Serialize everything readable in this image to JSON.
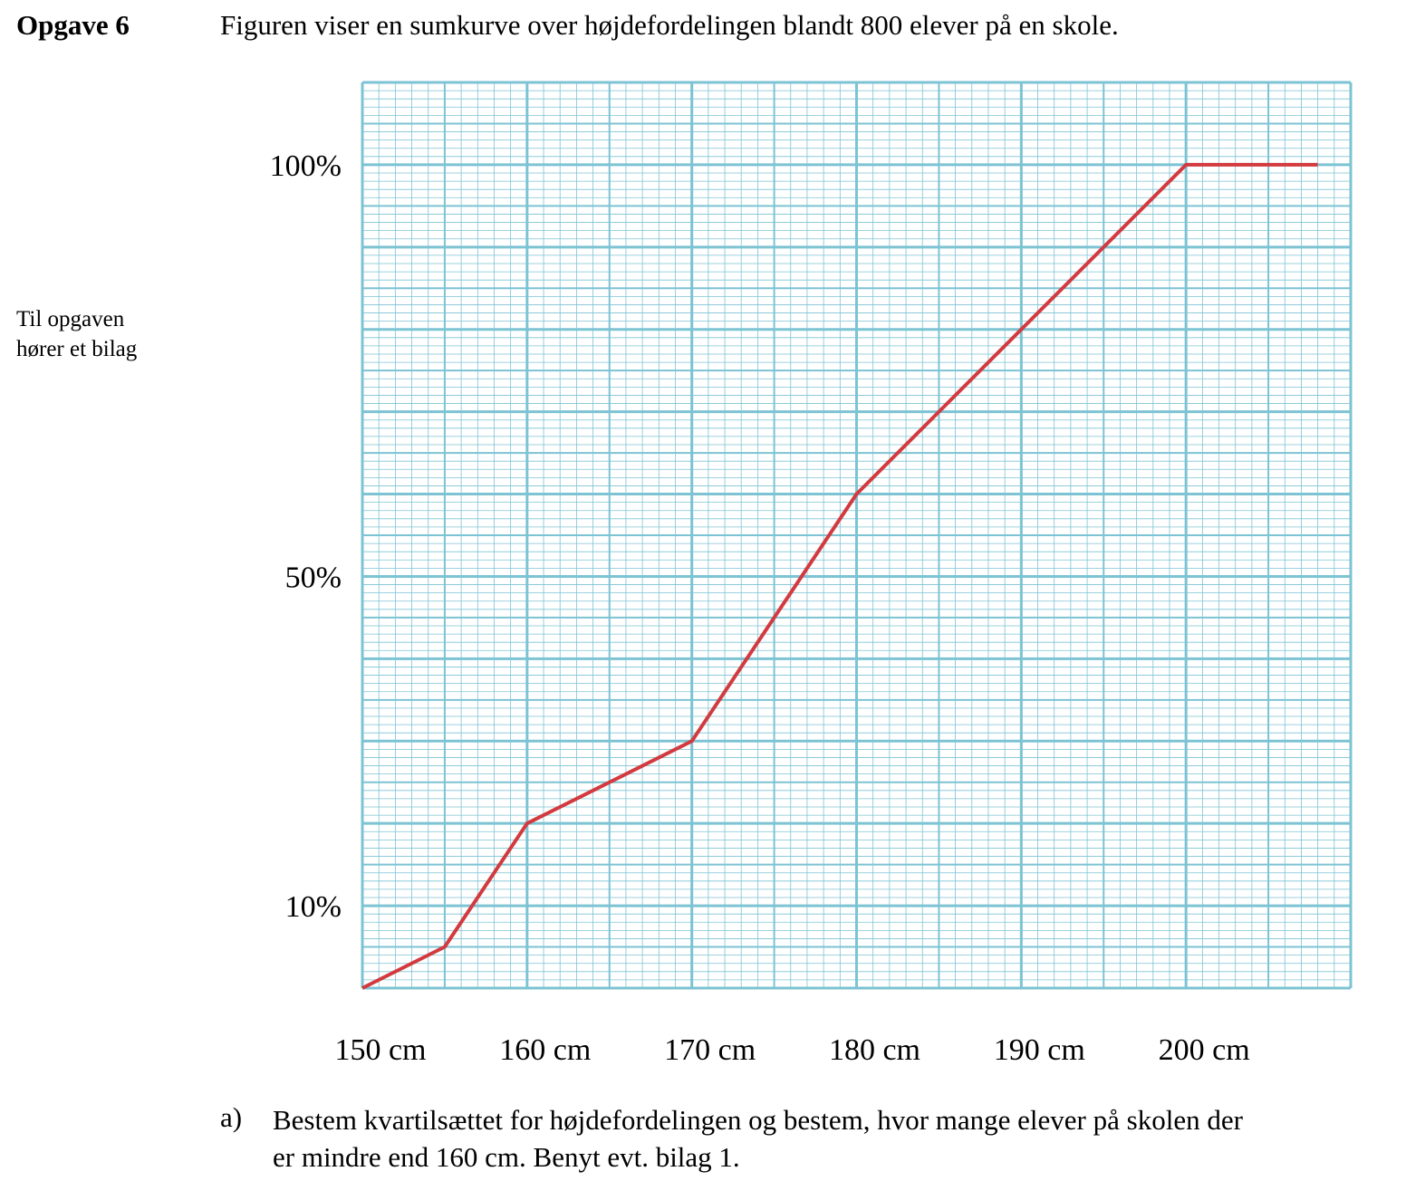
{
  "header": {
    "task_number": "Opgave 6",
    "task_text": "Figuren viser en sumkurve over højdefordelingen blandt 800 elever på en skole."
  },
  "side_note": {
    "line1": "Til opgaven",
    "line2": "hører et bilag"
  },
  "chart_data": {
    "type": "line",
    "title": "",
    "xlabel": "",
    "ylabel": "",
    "x_ticks": [
      "150 cm",
      "160 cm",
      "170 cm",
      "180 cm",
      "190 cm",
      "200 cm"
    ],
    "y_ticks": [
      "10%",
      "50%",
      "100%"
    ],
    "xlim": [
      150,
      210
    ],
    "ylim": [
      0,
      110
    ],
    "grid": true,
    "series": [
      {
        "color": "#d33a3f",
        "points": [
          {
            "x": 150,
            "y": 0
          },
          {
            "x": 155,
            "y": 5
          },
          {
            "x": 160,
            "y": 20
          },
          {
            "x": 170,
            "y": 30
          },
          {
            "x": 180,
            "y": 60
          },
          {
            "x": 200,
            "y": 100
          },
          {
            "x": 208,
            "y": 100
          }
        ]
      }
    ],
    "colors": {
      "grid": "#7cc3d3",
      "curve": "#d33a3f"
    }
  },
  "question": {
    "label": "a)",
    "line1": "Bestem kvartilsættet for højdefordelingen og bestem, hvor mange elever på skolen der",
    "line2": "er mindre end 160 cm. Benyt evt. bilag 1."
  }
}
